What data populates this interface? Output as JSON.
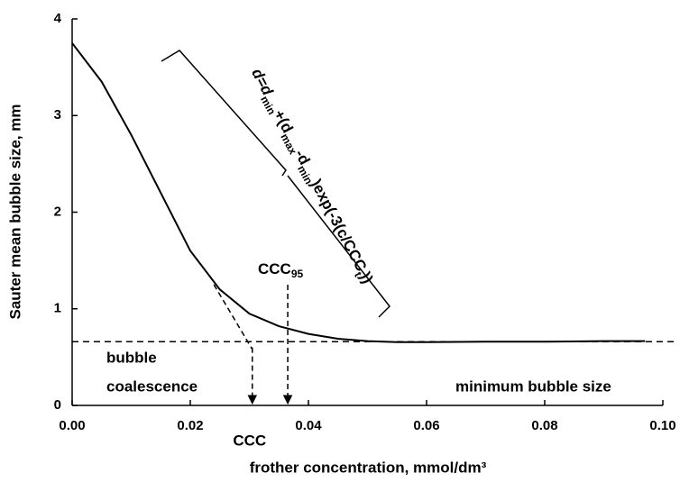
{
  "chart_data": {
    "type": "line",
    "x_label": "frother concentration, mmol/dm³",
    "y_label": "Sauter mean bubble size, mm",
    "x": [
      0,
      0.005,
      0.01,
      0.015,
      0.02,
      0.025,
      0.03,
      0.035,
      0.04,
      0.045,
      0.05,
      0.055,
      0.06,
      0.07,
      0.08,
      0.09,
      0.097
    ],
    "series": [
      {
        "color": "#000000",
        "style": "solid",
        "values": [
          3.75,
          3.35,
          2.8,
          2.2,
          1.6,
          1.2,
          0.95,
          0.82,
          0.74,
          0.69,
          0.665,
          0.655,
          0.655,
          0.66,
          0.66,
          0.665,
          0.665
        ]
      }
    ],
    "xlim": [
      0,
      0.1
    ],
    "xticks": [
      {
        "value": 0,
        "label": "0.00"
      },
      {
        "value": 0.02,
        "label": "0.02"
      },
      {
        "value": 0.04,
        "label": "0.04"
      },
      {
        "value": 0.06,
        "label": "0.06"
      },
      {
        "value": 0.08,
        "label": "0.08"
      },
      {
        "value": 0.1,
        "label": "0.10"
      }
    ],
    "ylim": [
      0,
      4
    ],
    "yticks": [
      0,
      1,
      2,
      3,
      4
    ],
    "min_size_line": 0.66,
    "tangent": {
      "x": [
        0.024,
        0.0305
      ],
      "y": [
        1.25,
        0.58
      ]
    },
    "ccc": {
      "label": "CCC",
      "x": 0.0305,
      "from": 0.6
    },
    "ccc95": {
      "label": [
        "CCC",
        "95"
      ],
      "x": 0.0365,
      "from": 1.25
    },
    "annotations": [
      "bubble",
      "coalescence",
      "minimum bubble size"
    ],
    "formula": [
      "d=d",
      "min",
      "+(d",
      "max",
      "-d",
      "min",
      ")exp(-3(c/CCC",
      "t",
      "))"
    ]
  }
}
